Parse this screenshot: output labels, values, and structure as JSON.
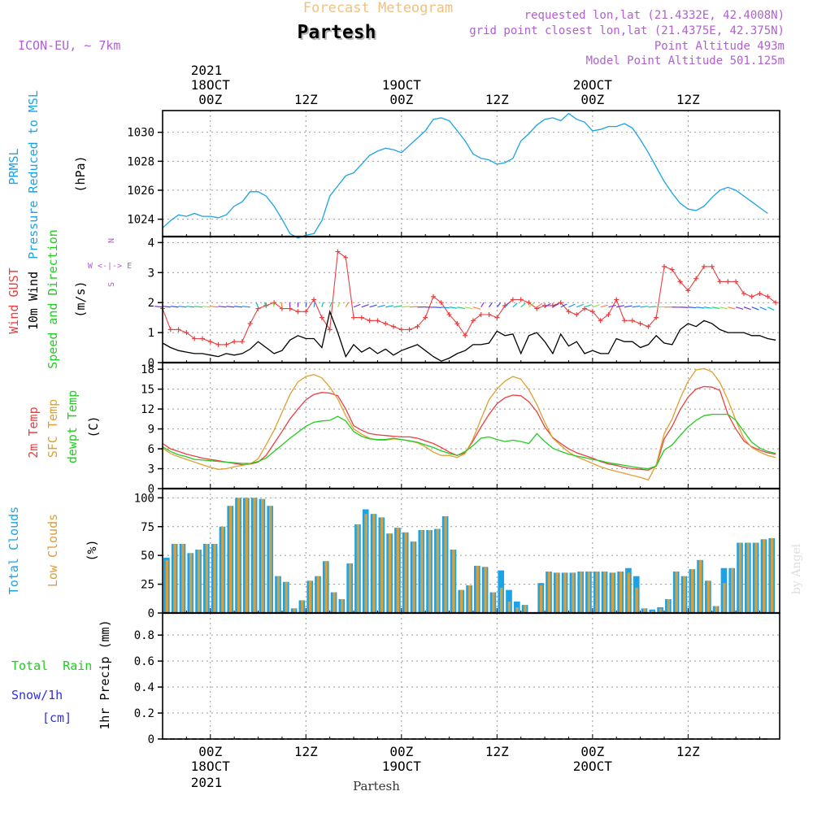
{
  "header": {
    "title_top": "Forecast Meteogram",
    "location": "Partesh",
    "model": "ICON-EU, ~ 7km",
    "requested": "requested lon,lat (21.4332E, 42.4008N)",
    "grid_point": "grid point closest lon,lat (21.4375E, 42.375N)",
    "point_alt": "Point Altitude 493m",
    "model_alt": "Model Point Altitude 501.125m",
    "credit": "by Angel",
    "footer_location": "Partesh"
  },
  "time_axis": {
    "top_year": "2021",
    "top_labels": [
      {
        "date": "18OCT",
        "hour": "00Z",
        "t": 6
      },
      {
        "date": "",
        "hour": "12Z",
        "t": 18
      },
      {
        "date": "19OCT",
        "hour": "00Z",
        "t": 30
      },
      {
        "date": "",
        "hour": "12Z",
        "t": 42
      },
      {
        "date": "20OCT",
        "hour": "00Z",
        "t": 54
      },
      {
        "date": "",
        "hour": "12Z",
        "t": 66
      }
    ],
    "bottom_labels": [
      {
        "hour": "00Z",
        "date": "18OCT",
        "t": 6
      },
      {
        "hour": "12Z",
        "date": "",
        "t": 18
      },
      {
        "hour": "00Z",
        "date": "19OCT",
        "t": 30
      },
      {
        "hour": "12Z",
        "date": "",
        "t": 42
      },
      {
        "hour": "00Z",
        "date": "20OCT",
        "t": 54
      },
      {
        "hour": "12Z",
        "date": "",
        "t": 66
      }
    ],
    "bottom_year": "2021"
  },
  "labels": {
    "pressure": {
      "l1": "PRMSL",
      "l2": "Pressure Reduced to MSL",
      "unit": "(hPa)"
    },
    "wind": {
      "gust": "Wind GUST",
      "wind10": "10m Wind",
      "dir": "Speed and Direction",
      "unit": "(m/s)",
      "compass": [
        "N",
        "W <-|-> E",
        "S"
      ]
    },
    "temp": {
      "t2m": "2m Temp",
      "sfc": "SFC Temp",
      "dew": "dewpt Temp",
      "unit": "(C)"
    },
    "clouds": {
      "total": "Total Clouds",
      "low": "Low Clouds",
      "unit": "(%)"
    },
    "precip": {
      "rain": "Total  Rain",
      "snow": "Snow/1h",
      "snow_unit": "[cm]",
      "unit": "1hr Precip (mm)"
    }
  },
  "colors": {
    "pressure": "#1aa3e8",
    "gust": "#e84040",
    "wind": "#000000",
    "t2m": "#e84040",
    "sfc": "#e0a030",
    "dew": "#22cc22",
    "total_clouds": "#1aa3e8",
    "low_clouds": "#d4a040",
    "purple": "#b060d0",
    "title_top": "#f0c080"
  },
  "chart_data": [
    {
      "type": "line",
      "name": "PRMSL",
      "ylabel": "(hPa)",
      "yticks": [
        1024,
        1026,
        1028,
        1030
      ],
      "ylim": [
        1022.8,
        1031.5
      ],
      "series": [
        {
          "values": [
            1023.4,
            1023.9,
            1024.3,
            1024.2,
            1024.4,
            1024.2,
            1024.2,
            1024.1,
            1024.3,
            1024.9,
            1025.2,
            1025.9,
            1025.9,
            1025.6,
            1024.9,
            1024.0,
            1023.0,
            1022.7,
            1022.9,
            1023.0,
            1023.9,
            1025.6,
            1026.3,
            1027.0,
            1027.2,
            1027.8,
            1028.4,
            1028.7,
            1028.9,
            1028.8,
            1028.6,
            1029.1,
            1029.6,
            1030.1,
            1030.9,
            1031.0,
            1030.8,
            1030.1,
            1029.4,
            1028.5,
            1028.2,
            1028.1,
            1027.8,
            1027.9,
            1028.2,
            1029.4,
            1029.9,
            1030.5,
            1030.9,
            1031.0,
            1030.8,
            1031.3,
            1030.9,
            1030.7,
            1030.1,
            1030.2,
            1030.4,
            1030.4,
            1030.6,
            1030.3,
            1029.5,
            1028.6,
            1027.6,
            1026.6,
            1025.8,
            1025.1,
            1024.7,
            1024.6,
            1024.9,
            1025.5,
            1026.0,
            1026.2,
            1026.0,
            1025.6,
            1025.2,
            1024.8,
            1024.4
          ]
        }
      ],
      "x_times": "hourly from t=0"
    },
    {
      "type": "line",
      "name": "Wind",
      "ylabel": "(m/s)",
      "yticks": [
        0,
        1,
        2,
        3,
        4
      ],
      "ylim": [
        0,
        4.2
      ],
      "series": [
        {
          "name": "Wind GUST",
          "values": [
            1.8,
            1.1,
            1.1,
            1.0,
            0.8,
            0.8,
            0.7,
            0.6,
            0.6,
            0.7,
            0.7,
            1.3,
            1.8,
            1.9,
            2.0,
            1.8,
            1.8,
            1.7,
            1.7,
            2.1,
            1.5,
            1.1,
            3.7,
            3.5,
            1.5,
            1.5,
            1.4,
            1.4,
            1.3,
            1.2,
            1.1,
            1.1,
            1.2,
            1.5,
            2.2,
            2.0,
            1.6,
            1.3,
            0.9,
            1.4,
            1.6,
            1.6,
            1.5,
            1.9,
            2.1,
            2.1,
            2.0,
            1.8,
            1.9,
            1.9,
            2.0,
            1.7,
            1.6,
            1.8,
            1.7,
            1.4,
            1.6,
            2.1,
            1.4,
            1.4,
            1.3,
            1.2,
            1.5,
            3.2,
            3.1,
            2.7,
            2.4,
            2.8,
            3.2,
            3.2,
            2.7,
            2.7,
            2.7,
            2.3,
            2.2,
            2.3,
            2.2,
            2.0
          ]
        },
        {
          "name": "10m Wind",
          "values": [
            0.65,
            0.5,
            0.4,
            0.35,
            0.3,
            0.3,
            0.25,
            0.2,
            0.3,
            0.25,
            0.3,
            0.45,
            0.7,
            0.5,
            0.3,
            0.4,
            0.75,
            0.9,
            0.8,
            0.8,
            0.5,
            1.7,
            1.0,
            0.2,
            0.6,
            0.35,
            0.5,
            0.3,
            0.45,
            0.25,
            0.4,
            0.5,
            0.6,
            0.4,
            0.2,
            0.05,
            0.15,
            0.3,
            0.4,
            0.6,
            0.6,
            0.65,
            1.05,
            0.9,
            0.95,
            0.3,
            0.9,
            1.0,
            0.7,
            0.3,
            0.95,
            0.55,
            0.7,
            0.3,
            0.4,
            0.3,
            0.3,
            0.8,
            0.7,
            0.7,
            0.5,
            0.6,
            0.9,
            0.65,
            0.6,
            1.1,
            1.3,
            1.2,
            1.4,
            1.3,
            1.1,
            1.0,
            1.0,
            1.0,
            0.9,
            0.9,
            0.8,
            0.75
          ]
        }
      ]
    },
    {
      "type": "line",
      "name": "Temperature",
      "ylabel": "(C)",
      "yticks": [
        0,
        3,
        6,
        9,
        12,
        15,
        18
      ],
      "ylim": [
        0,
        19
      ],
      "series": [
        {
          "name": "2m Temp",
          "values": [
            6.8,
            6.0,
            5.6,
            5.2,
            4.9,
            4.6,
            4.4,
            4.2,
            4.0,
            3.8,
            3.6,
            3.7,
            4.0,
            5.0,
            6.8,
            8.6,
            10.5,
            12.0,
            13.4,
            14.2,
            14.5,
            14.4,
            14.0,
            12.0,
            9.5,
            8.8,
            8.3,
            8.1,
            8.0,
            7.9,
            7.8,
            7.8,
            7.6,
            7.2,
            6.8,
            6.2,
            5.5,
            5.0,
            5.4,
            7.2,
            9.3,
            11.2,
            12.8,
            13.7,
            14.1,
            14.0,
            13.1,
            11.6,
            9.3,
            7.7,
            6.8,
            6.0,
            5.4,
            5.0,
            4.6,
            4.1,
            3.7,
            3.5,
            3.2,
            3.0,
            2.9,
            2.8,
            3.4,
            7.5,
            9.4,
            11.9,
            13.8,
            15.0,
            15.4,
            15.3,
            14.8,
            11.2,
            9.0,
            7.2,
            6.3,
            5.8,
            5.4,
            5.2
          ]
        },
        {
          "name": "SFC Temp",
          "values": [
            6.1,
            5.3,
            4.8,
            4.4,
            4.0,
            3.6,
            3.2,
            2.9,
            3.0,
            3.3,
            3.5,
            3.7,
            4.5,
            6.6,
            8.8,
            11.5,
            14.2,
            16.1,
            16.9,
            17.2,
            16.7,
            15.3,
            13.5,
            11.0,
            9.0,
            8.2,
            7.6,
            7.3,
            7.3,
            7.5,
            7.4,
            7.2,
            6.9,
            6.3,
            5.5,
            5.0,
            5.0,
            4.7,
            5.3,
            7.5,
            10.5,
            13.4,
            15.0,
            16.2,
            16.9,
            16.5,
            14.9,
            12.7,
            10.0,
            7.6,
            6.5,
            5.5,
            4.8,
            4.3,
            3.8,
            3.3,
            2.9,
            2.6,
            2.3,
            2.0,
            1.7,
            1.3,
            3.6,
            8.3,
            10.5,
            13.6,
            16.2,
            17.9,
            18.1,
            17.6,
            16.0,
            13.4,
            10.3,
            7.6,
            6.2,
            5.5,
            5.0,
            4.7
          ]
        },
        {
          "name": "dewpt Temp",
          "values": [
            6.3,
            5.6,
            5.1,
            4.8,
            4.4,
            4.3,
            4.2,
            4.1,
            4.0,
            3.9,
            3.8,
            3.8,
            4.1,
            4.6,
            5.6,
            6.6,
            7.6,
            8.5,
            9.4,
            10.0,
            10.2,
            10.3,
            10.9,
            10.2,
            8.6,
            7.9,
            7.5,
            7.4,
            7.4,
            7.6,
            7.4,
            7.2,
            7.0,
            6.6,
            6.2,
            5.7,
            5.3,
            5.0,
            5.6,
            6.5,
            7.6,
            7.8,
            7.4,
            7.1,
            7.3,
            7.1,
            6.8,
            8.3,
            7.1,
            6.1,
            5.6,
            5.2,
            4.9,
            4.7,
            4.4,
            4.2,
            3.9,
            3.7,
            3.5,
            3.3,
            3.1,
            3.0,
            3.4,
            5.8,
            6.6,
            8.0,
            9.3,
            10.3,
            11.0,
            11.2,
            11.2,
            11.2,
            10.3,
            8.6,
            7.0,
            6.1,
            5.6,
            5.3
          ]
        }
      ]
    },
    {
      "type": "bar",
      "name": "Clouds",
      "ylabel": "(%)",
      "yticks": [
        0,
        25,
        50,
        75,
        100
      ],
      "ylim": [
        0,
        108
      ],
      "series": [
        {
          "name": "Total Clouds",
          "values": [
            48,
            60,
            60,
            52,
            55,
            60,
            60,
            75,
            93,
            100,
            100,
            100,
            99,
            93,
            32,
            27,
            4,
            11,
            28,
            32,
            45,
            18,
            12,
            43,
            77,
            90,
            86,
            83,
            69,
            74,
            70,
            62,
            72,
            72,
            73,
            84,
            55,
            20,
            24,
            41,
            40,
            18,
            37,
            20,
            10,
            7,
            0,
            26,
            36,
            35,
            35,
            35,
            36,
            36,
            36,
            36,
            35,
            36,
            39,
            32,
            4,
            3,
            5,
            12,
            36,
            32,
            38,
            46,
            28,
            6,
            39,
            39,
            61,
            61,
            61,
            64,
            65
          ]
        },
        {
          "name": "Low Clouds",
          "values": [
            46,
            60,
            60,
            52,
            55,
            60,
            60,
            75,
            93,
            100,
            100,
            100,
            99,
            93,
            32,
            27,
            4,
            11,
            28,
            32,
            45,
            18,
            12,
            43,
            77,
            86,
            86,
            83,
            69,
            74,
            70,
            62,
            72,
            72,
            73,
            84,
            55,
            20,
            24,
            41,
            40,
            18,
            22,
            10,
            5,
            7,
            0,
            24,
            36,
            35,
            35,
            35,
            36,
            36,
            36,
            36,
            35,
            36,
            35,
            22,
            4,
            2,
            4,
            12,
            36,
            32,
            38,
            46,
            28,
            6,
            26,
            39,
            61,
            61,
            61,
            64,
            65
          ]
        }
      ]
    },
    {
      "type": "line",
      "name": "Precipitation",
      "ylabel": "1hr Precip (mm)",
      "yticks": [
        0,
        0.2,
        0.4,
        0.6,
        0.8
      ],
      "ylim": [
        0,
        0.97
      ],
      "series": [
        {
          "name": "Total Rain",
          "values": [
            0,
            0,
            0,
            0,
            0,
            0,
            0,
            0,
            0,
            0,
            0,
            0,
            0,
            0,
            0,
            0,
            0,
            0,
            0,
            0,
            0,
            0,
            0,
            0,
            0,
            0,
            0,
            0,
            0,
            0,
            0,
            0,
            0,
            0,
            0,
            0,
            0,
            0,
            0,
            0,
            0,
            0,
            0,
            0,
            0,
            0,
            0,
            0,
            0,
            0,
            0,
            0,
            0,
            0,
            0,
            0,
            0,
            0,
            0,
            0,
            0,
            0,
            0,
            0,
            0,
            0,
            0,
            0,
            0,
            0,
            0,
            0,
            0,
            0,
            0,
            0,
            0
          ]
        }
      ]
    }
  ]
}
